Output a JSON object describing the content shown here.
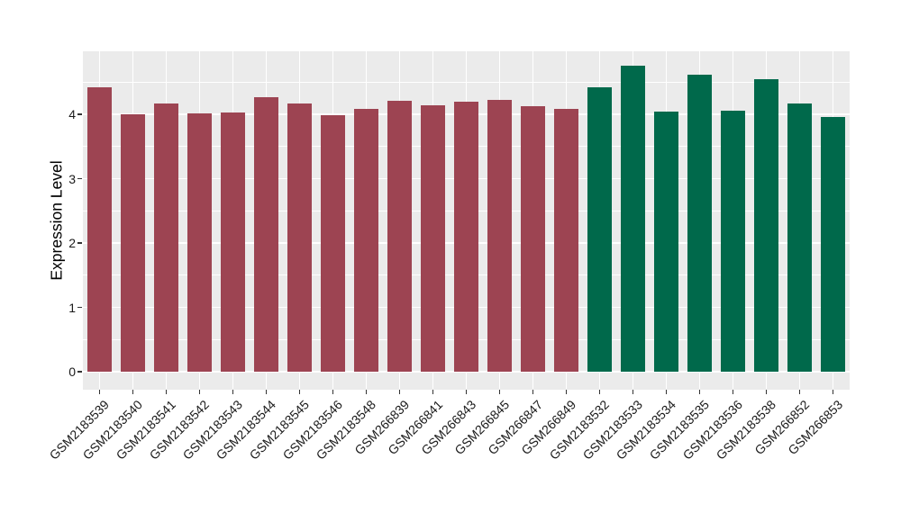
{
  "chart_data": {
    "type": "bar",
    "title": "",
    "ylabel": "Expression Level",
    "xlabel": "",
    "categories": [
      "GSM2183539",
      "GSM2183540",
      "GSM2183541",
      "GSM2183542",
      "GSM2183543",
      "GSM2183544",
      "GSM2183545",
      "GSM2183546",
      "GSM2183548",
      "GSM266839",
      "GSM266841",
      "GSM266843",
      "GSM266845",
      "GSM266847",
      "GSM266849",
      "GSM2183532",
      "GSM2183533",
      "GSM2183534",
      "GSM2183535",
      "GSM2183536",
      "GSM2183538",
      "GSM266852",
      "GSM266853"
    ],
    "values": [
      4.42,
      4.0,
      4.17,
      4.02,
      4.03,
      4.26,
      4.17,
      3.99,
      4.08,
      4.21,
      4.14,
      4.2,
      4.23,
      4.13,
      4.08,
      4.42,
      4.75,
      4.04,
      4.62,
      4.06,
      4.55,
      4.17,
      3.96
    ],
    "group_index": [
      0,
      0,
      0,
      0,
      0,
      0,
      0,
      0,
      0,
      0,
      0,
      0,
      0,
      0,
      0,
      1,
      1,
      1,
      1,
      1,
      1,
      1,
      1
    ],
    "group_colors": [
      "#9D4452",
      "#00694B"
    ],
    "yticks": [
      0,
      1,
      2,
      3,
      4
    ],
    "ytick_labels": [
      "0",
      "1",
      "2",
      "3",
      "4"
    ],
    "minor_yticks": [
      0.5,
      1.5,
      2.5,
      3.5,
      4.5
    ],
    "ylim": [
      -0.24,
      4.98
    ],
    "x_label_rotation_deg": 45,
    "legend": "none",
    "grid": {
      "horizontal": "major+minor",
      "vertical": "major",
      "color": "#FFFFFF"
    },
    "panel_background": "#EBEBEB",
    "page_background": "#FFFFFF",
    "tick_color": "#333333",
    "tick_label_color": "#1A1A1A",
    "axis_title_color": "#000000"
  }
}
